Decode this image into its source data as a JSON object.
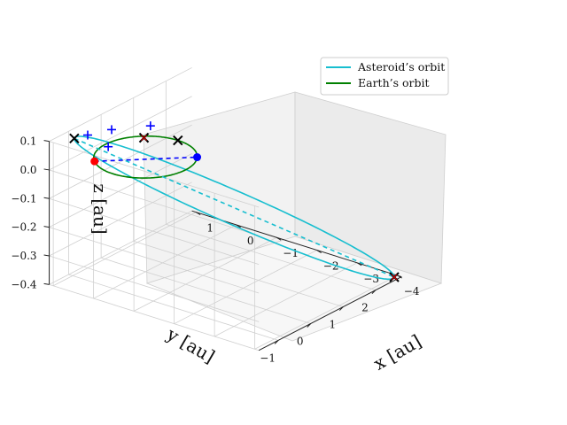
{
  "chart_data": {
    "type": "line",
    "projection": "3d",
    "grid": true,
    "legend_position": "top-right",
    "xlabel": "x [au]",
    "ylabel": "y [au]",
    "zlabel": "z [au]",
    "xlim": [
      -1.6,
      2.8
    ],
    "ylim": [
      -4.1,
      1.1
    ],
    "zlim": [
      -0.4,
      0.1
    ],
    "x_ticks": [
      "−1",
      "0",
      "1",
      "2"
    ],
    "y_ticks": [
      "1",
      "0",
      "−1",
      "−2",
      "−3",
      "−4"
    ],
    "z_ticks": [
      "0.1",
      "0.0",
      "−0.1",
      "−0.2",
      "−0.3",
      "−0.4"
    ],
    "x_tick_values": [
      -1,
      0,
      1,
      2
    ],
    "y_tick_values": [
      1,
      0,
      -1,
      -2,
      -3,
      -4
    ],
    "z_tick_values": [
      0.1,
      0.0,
      -0.1,
      -0.2,
      -0.3,
      -0.4
    ],
    "series": [
      {
        "name": "Asteroid’s orbit",
        "color": "#17becf",
        "curve": "ellipse",
        "center": [
          0.75,
          -1.6,
          -0.15
        ],
        "semi_major": [
          -1.95,
          2.4,
          0.25
        ],
        "semi_minor": [
          0.45,
          0.3,
          0.02
        ]
      },
      {
        "name": "Earth’s orbit",
        "color": "#008000",
        "curve": "ellipse",
        "center": [
          0.0,
          0.0,
          0.0
        ],
        "semi_major": [
          1.0,
          0.0,
          0.0
        ],
        "semi_minor": [
          0.0,
          1.0,
          0.0
        ]
      }
    ],
    "lines": [
      {
        "style": "dashed",
        "color": "#0000ff",
        "from": [
          -0.75,
          0.66,
          0.0
        ],
        "to": [
          0.6,
          -0.8,
          0.0
        ]
      },
      {
        "style": "dashed",
        "color": "#17becf",
        "from": [
          -1.2,
          0.8,
          0.1
        ],
        "to": [
          2.7,
          -4.0,
          -0.4
        ]
      }
    ],
    "points": [
      {
        "marker": "circle",
        "color": "#ff0000",
        "xyz": [
          -0.75,
          0.66,
          0.0
        ]
      },
      {
        "marker": "circle",
        "color": "#0000ff",
        "xyz": [
          0.6,
          -0.8,
          0.0
        ]
      },
      {
        "marker": "x-black",
        "xyz": [
          -1.2,
          0.8,
          0.1
        ]
      },
      {
        "marker": "x-black",
        "xyz": [
          1.0,
          0.0,
          0.0
        ]
      },
      {
        "marker": "x-red-black",
        "xyz": [
          2.7,
          -4.0,
          -0.4
        ]
      },
      {
        "marker": "x-red-black",
        "xyz": [
          0.7,
          0.6,
          0.0
        ]
      },
      {
        "marker": "plus",
        "color": "#0000ff",
        "xyz": [
          -0.6,
          0.95,
          0.07
        ]
      },
      {
        "marker": "plus",
        "color": "#0000ff",
        "xyz": [
          0.2,
          1.0,
          0.04
        ]
      },
      {
        "marker": "plus",
        "color": "#0000ff",
        "xyz": [
          -0.9,
          0.2,
          0.08
        ]
      },
      {
        "marker": "plus",
        "color": "#0000ff",
        "xyz": [
          0.9,
          0.6,
          0.03
        ]
      }
    ]
  }
}
